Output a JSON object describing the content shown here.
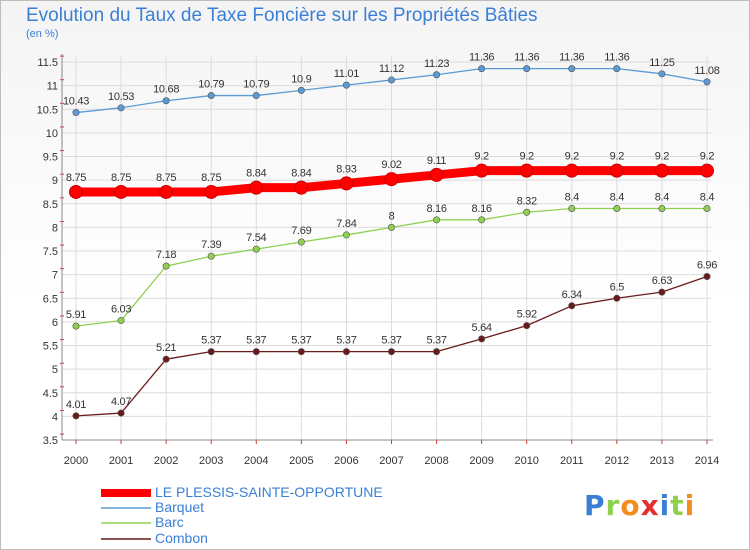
{
  "chart_data": {
    "type": "line",
    "title": "Evolution du Taux de Taxe Foncière sur les Propriétés Bâties",
    "ylabel": "(en %)",
    "xlabel": "",
    "x": [
      "2000",
      "2001",
      "2002",
      "2003",
      "2004",
      "2005",
      "2006",
      "2007",
      "2008",
      "2009",
      "2010",
      "2011",
      "2012",
      "2013",
      "2014"
    ],
    "ylim": [
      3.5,
      11.5
    ],
    "yticks": [
      "3.5",
      "4",
      "4.5",
      "5",
      "5.5",
      "6",
      "6.5",
      "7",
      "7.5",
      "8",
      "8.5",
      "9",
      "9.5",
      "10",
      "10.5",
      "11",
      "11.5"
    ],
    "grid": true,
    "legend_position": "bottom-left",
    "series": [
      {
        "name": "LE PLESSIS-SAINTE-OPPORTUNE",
        "color": "#ff0000",
        "values": [
          8.75,
          8.75,
          8.75,
          8.75,
          8.84,
          8.84,
          8.93,
          9.02,
          9.11,
          9.2,
          9.2,
          9.2,
          9.2,
          9.2,
          9.2
        ],
        "labels": [
          "8.75",
          "8.75",
          "8.75",
          "8.75",
          "8.84",
          "8.84",
          "8.93",
          "9.02",
          "9.11",
          "9.2",
          "9.2",
          "9.2",
          "9.2",
          "9.2",
          "9.2"
        ]
      },
      {
        "name": "Barquet",
        "color": "#5b9bd5",
        "values": [
          10.43,
          10.53,
          10.68,
          10.79,
          10.79,
          10.9,
          11.01,
          11.12,
          11.23,
          11.36,
          11.36,
          11.36,
          11.36,
          11.25,
          11.08
        ],
        "labels": [
          "10.43",
          "10.53",
          "10.68",
          "10.79",
          "10.79",
          "10.9",
          "11.01",
          "11.12",
          "11.23",
          "11.36",
          "11.36",
          "11.36",
          "11.36",
          "11.25",
          "11.08"
        ]
      },
      {
        "name": "Barc",
        "color": "#8fd14f",
        "values": [
          5.91,
          6.03,
          7.18,
          7.39,
          7.54,
          7.69,
          7.84,
          8,
          8.16,
          8.16,
          8.32,
          8.4,
          8.4,
          8.4,
          8.4
        ],
        "labels": [
          "5.91",
          "6.03",
          "7.18",
          "7.39",
          "7.54",
          "7.69",
          "7.84",
          "8",
          "8.16",
          "8.16",
          "8.32",
          "8.4",
          "8.4",
          "8.4",
          "8.4"
        ]
      },
      {
        "name": "Combon",
        "color": "#6b1a1a",
        "values": [
          4.01,
          4.07,
          5.21,
          5.37,
          5.37,
          5.37,
          5.37,
          5.37,
          5.37,
          5.64,
          5.92,
          6.34,
          6.5,
          6.63,
          6.96
        ],
        "labels": [
          "4.01",
          "4.07",
          "5.21",
          "5.37",
          "5.37",
          "5.37",
          "5.37",
          "5.37",
          "5.37",
          "5.64",
          "5.92",
          "6.34",
          "6.5",
          "6.63",
          "6.96"
        ]
      }
    ]
  },
  "logo": {
    "text": "Proxiti"
  }
}
